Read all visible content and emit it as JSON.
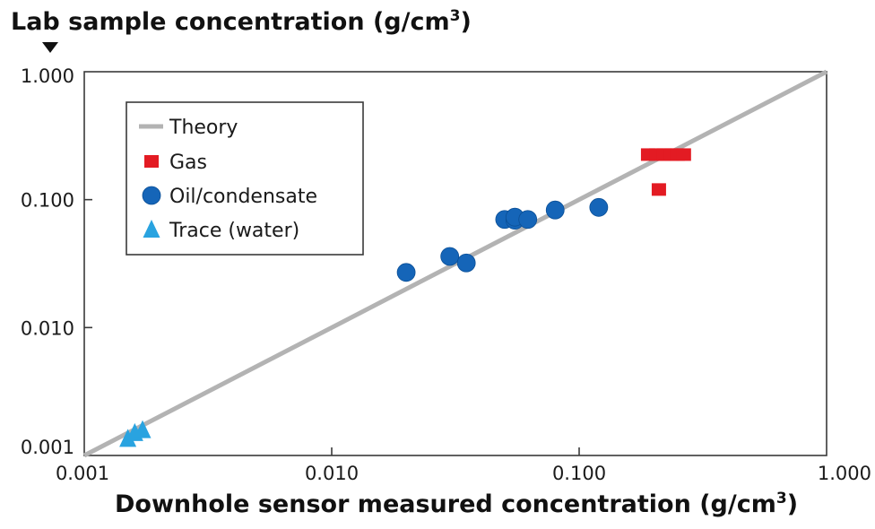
{
  "chart_data": {
    "type": "scatter",
    "title": "",
    "ylabel": "Lab sample concentration (g/cm",
    "ylabel_sup": "3",
    "ylabel_tail": ")",
    "xlabel": "Downhole sensor measured concentration (g/cm",
    "xlabel_sup": "3",
    "xlabel_tail": ")",
    "x_scale": "log",
    "y_scale": "log",
    "xlim": [
      0.001,
      1.0
    ],
    "ylim": [
      0.001,
      1.0
    ],
    "x_ticks": [
      "0.001",
      "0.010",
      "0.100",
      "1.000"
    ],
    "y_ticks": [
      "0.001",
      "0.010",
      "0.100",
      "1.000"
    ],
    "grid": false,
    "legend_position": "top-left",
    "series": [
      {
        "name": "Theory",
        "kind": "line",
        "color": "#b3b3b3",
        "points": [
          [
            0.001,
            0.001
          ],
          [
            1.0,
            1.0
          ]
        ]
      },
      {
        "name": "Gas",
        "kind": "square",
        "color": "#e31b23",
        "points": [
          [
            0.19,
            0.225
          ],
          [
            0.205,
            0.225
          ],
          [
            0.22,
            0.225
          ],
          [
            0.235,
            0.225
          ],
          [
            0.25,
            0.225
          ],
          [
            0.265,
            0.225
          ],
          [
            0.21,
            0.12
          ]
        ]
      },
      {
        "name": "Oil/condensate",
        "kind": "circle",
        "color": "#1565b8",
        "points": [
          [
            0.02,
            0.027
          ],
          [
            0.03,
            0.036
          ],
          [
            0.035,
            0.032
          ],
          [
            0.05,
            0.07
          ],
          [
            0.055,
            0.069
          ],
          [
            0.055,
            0.073
          ],
          [
            0.062,
            0.07
          ],
          [
            0.08,
            0.083
          ],
          [
            0.12,
            0.087
          ]
        ]
      },
      {
        "name": "Trace (water)",
        "kind": "triangle",
        "color": "#29a3e0",
        "points": [
          [
            0.0015,
            0.00135
          ],
          [
            0.0016,
            0.0015
          ],
          [
            0.00172,
            0.00158
          ]
        ]
      }
    ]
  }
}
